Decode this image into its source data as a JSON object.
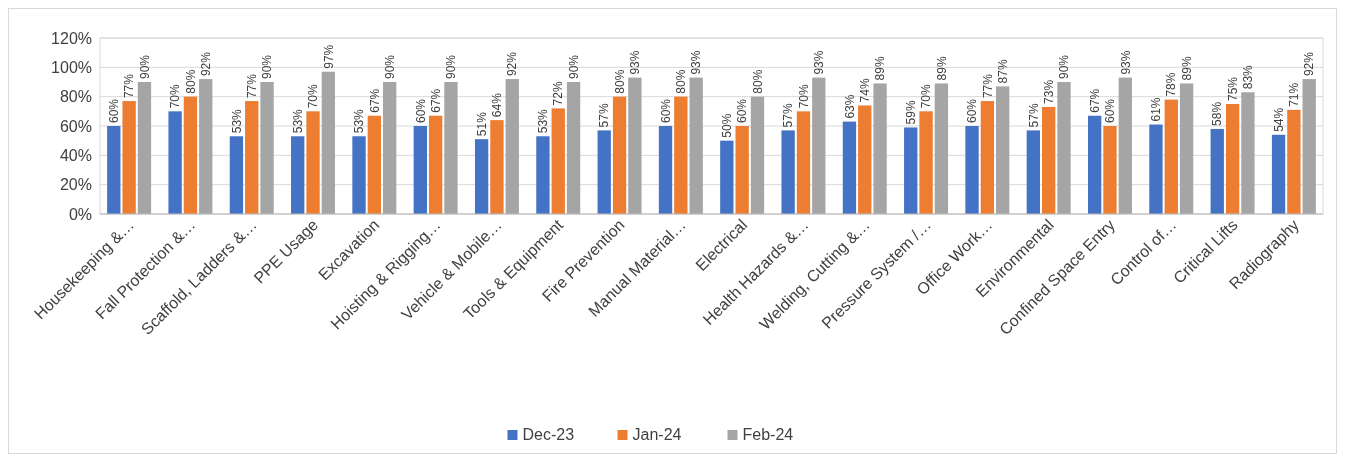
{
  "chart_data": {
    "type": "bar",
    "categories": [
      "Housekeeping &…",
      "Fall Protection &…",
      "Scaffold, Ladders &…",
      "PPE Usage",
      "Excavation",
      "Hoisting & Rigging…",
      "Vehicle & Mobile…",
      "Tools & Equipment",
      "Fire Prevention",
      "Manual Material…",
      "Electrical",
      "Health Hazards &…",
      "Welding, Cutting &…",
      "Pressure System /…",
      "Office Work…",
      "Environmental",
      "Confined Space Entry",
      "Control of…",
      "Critical Lifts",
      "Radiography"
    ],
    "series": [
      {
        "name": "Dec-23",
        "color": "#4472c4",
        "values": [
          60,
          70,
          53,
          53,
          53,
          60,
          51,
          53,
          57,
          60,
          50,
          57,
          63,
          59,
          60,
          57,
          67,
          61,
          58,
          54
        ],
        "value_labels": [
          "60%",
          "70%",
          "53%",
          "53%",
          "53%",
          "60%",
          "51%",
          "53%",
          "57%",
          "60%",
          "50%",
          "57%",
          "63%",
          "59%",
          "60%",
          "57%",
          "67%",
          "61%",
          "58%",
          "54%"
        ]
      },
      {
        "name": "Jan-24",
        "color": "#ed7d31",
        "values": [
          77,
          80,
          77,
          70,
          67,
          67,
          64,
          72,
          80,
          80,
          60,
          70,
          74,
          70,
          77,
          73,
          60,
          78,
          75,
          71
        ],
        "value_labels": [
          "77%",
          "80%",
          "77%",
          "70%",
          "67%",
          "67%",
          "64%",
          "72%",
          "80%",
          "80%",
          "60%",
          "70%",
          "74%",
          "70%",
          "77%",
          "73%",
          "60%",
          "78%",
          "75%",
          "71%"
        ]
      },
      {
        "name": "Feb-24",
        "color": "#a5a5a5",
        "values": [
          90,
          92,
          90,
          97,
          90,
          90,
          92,
          90,
          93,
          93,
          80,
          93,
          89,
          89,
          87,
          90,
          93,
          89,
          83,
          92
        ],
        "value_labels": [
          "90%",
          "92%",
          "90%",
          "97%",
          "90%",
          "90%",
          "92%",
          "90%",
          "93%",
          "93%",
          "80%",
          "93%",
          "89%",
          "89%",
          "87%",
          "90%",
          "93%",
          "89%",
          "83%",
          "92%"
        ]
      }
    ],
    "ylim": [
      0,
      120
    ],
    "yticks": [
      {
        "value": 0,
        "label": "0%"
      },
      {
        "value": 20,
        "label": "20%"
      },
      {
        "value": 40,
        "label": "40%"
      },
      {
        "value": 60,
        "label": "60%"
      },
      {
        "value": 80,
        "label": "80%"
      },
      {
        "value": 100,
        "label": "100%"
      },
      {
        "value": 120,
        "label": "120%"
      }
    ],
    "grid": "y",
    "legend": "bottom"
  }
}
